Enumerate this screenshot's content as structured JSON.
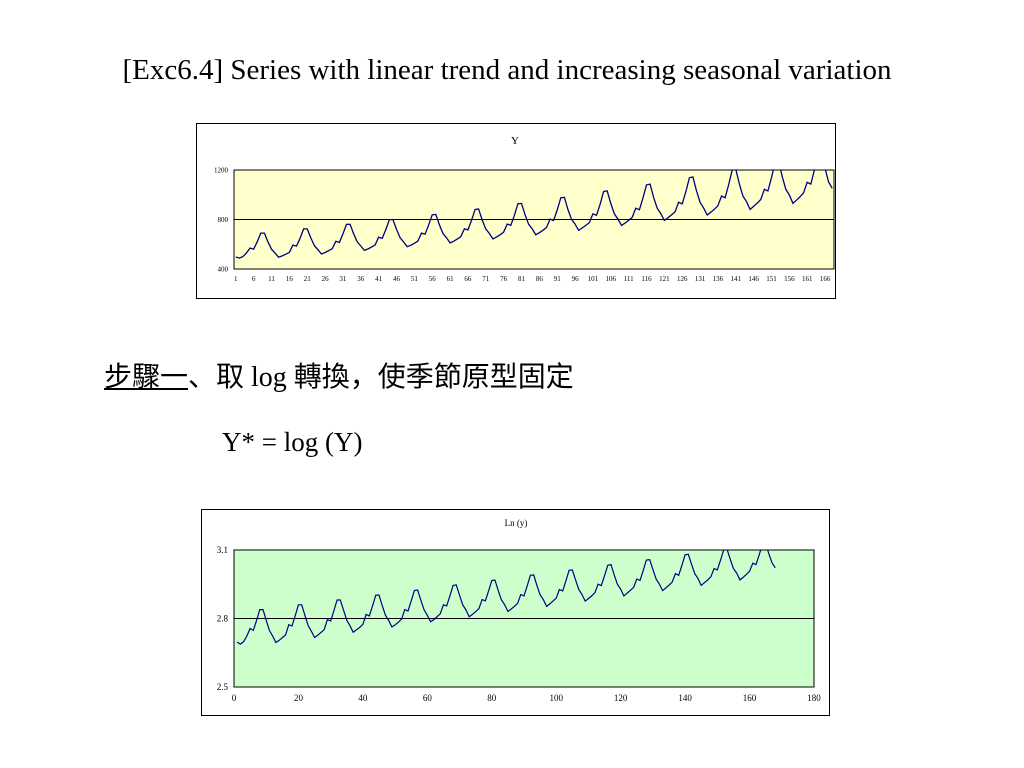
{
  "slide": {
    "title": "[Exc6.4] Series with linear trend and increasing seasonal variation",
    "step_label": "步驟一",
    "step_text": "、取 log 轉換，使季節原型固定",
    "formula": "Y* = log (Y)"
  },
  "colors": {
    "plot_bg_top": "#ffffcc",
    "plot_bg_bottom": "#ccffcc",
    "series_top": "#000080",
    "series_bottom": "#000080"
  },
  "chart_data": [
    {
      "type": "line",
      "title": "Y",
      "xlabel": "",
      "ylabel": "",
      "ylim": [
        400,
        1200
      ],
      "y_ticks": [
        400,
        800,
        1200
      ],
      "x_tick_labels": [
        "1",
        "6",
        "11",
        "16",
        "21",
        "26",
        "31",
        "36",
        "41",
        "46",
        "51",
        "56",
        "61",
        "66",
        "71",
        "76",
        "81",
        "86",
        "91",
        "96",
        "101",
        "106",
        "111",
        "116",
        "121",
        "126",
        "131",
        "136",
        "141",
        "146",
        "151",
        "156",
        "161",
        "166"
      ],
      "grid": "horizontal line at 800",
      "legend": "none",
      "x": [
        1,
        2,
        3,
        4,
        5,
        6,
        7,
        8,
        9,
        10,
        11,
        12,
        13,
        14,
        15,
        16,
        17,
        18,
        19,
        20,
        21,
        22,
        23,
        24,
        25,
        26,
        27,
        28,
        29,
        30,
        31,
        32,
        33,
        34,
        35,
        36,
        37,
        38,
        39,
        40,
        41,
        42,
        43,
        44,
        45,
        46,
        47,
        48,
        49,
        50,
        51,
        52,
        53,
        54,
        55,
        56,
        57,
        58,
        59,
        60,
        61,
        62,
        63,
        64,
        65,
        66,
        67,
        68,
        69,
        70,
        71,
        72,
        73,
        74,
        75,
        76,
        77,
        78,
        79,
        80,
        81,
        82,
        83,
        84,
        85,
        86,
        87,
        88,
        89,
        90,
        91,
        92,
        93,
        94,
        95,
        96,
        97,
        98,
        99,
        100,
        101,
        102,
        103,
        104,
        105,
        106,
        107,
        108,
        109,
        110,
        111,
        112,
        113,
        114,
        115,
        116,
        117,
        118,
        119,
        120,
        121,
        122,
        123,
        124,
        125,
        126,
        127,
        128,
        129,
        130,
        131,
        132,
        133,
        134,
        135,
        136,
        137,
        138,
        139,
        140,
        141,
        142,
        143,
        144,
        145,
        146,
        147,
        148,
        149,
        150,
        151,
        152,
        153,
        154,
        155,
        156,
        157,
        158,
        159,
        160,
        161,
        162,
        163,
        164,
        165,
        166,
        167,
        168
      ],
      "values": [
        497,
        488,
        500,
        530,
        570,
        560,
        620,
        690,
        690,
        620,
        560,
        528,
        495,
        506,
        520,
        534,
        593,
        585,
        649,
        724,
        724,
        651,
        589,
        556,
        521,
        533,
        548,
        563,
        624,
        615,
        683,
        760,
        761,
        685,
        620,
        586,
        550,
        562,
        577,
        594,
        657,
        647,
        718,
        798,
        800,
        720,
        653,
        618,
        580,
        592,
        608,
        626,
        690,
        681,
        754,
        838,
        841,
        757,
        688,
        652,
        611,
        624,
        642,
        661,
        725,
        716,
        793,
        881,
        885,
        796,
        723,
        687,
        643,
        658,
        676,
        697,
        763,
        753,
        834,
        927,
        930,
        838,
        762,
        724,
        677,
        693,
        713,
        735,
        803,
        792,
        877,
        975,
        979,
        882,
        802,
        763,
        713,
        731,
        752,
        775,
        845,
        834,
        923,
        1026,
        1031,
        929,
        845,
        804,
        752,
        771,
        793,
        818,
        891,
        879,
        972,
        1080,
        1086,
        979,
        891,
        848,
        793,
        814,
        837,
        863,
        939,
        926,
        1023,
        1137,
        1144,
        1032,
        939,
        894,
        836,
        859,
        883,
        911,
        990,
        976,
        1079,
        1199,
        1206,
        1088,
        990,
        944,
        882,
        906,
        932,
        962,
        1044,
        1030,
        1138,
        1264,
        1272,
        1148,
        1045,
        997,
        931,
        956,
        984,
        1016,
        1101,
        1086,
        1200,
        1333,
        1341,
        1212,
        1103,
        1052
      ]
    },
    {
      "type": "line",
      "title": "Ln (y)",
      "xlabel": "",
      "ylabel": "",
      "xlim": [
        0,
        180
      ],
      "ylim": [
        2.5,
        3.1
      ],
      "x_ticks": [
        0,
        20,
        40,
        60,
        80,
        100,
        120,
        140,
        160,
        180
      ],
      "y_ticks": [
        2.5,
        2.8,
        3.1
      ],
      "grid": "horizontal line at 2.8",
      "legend": "none",
      "x": [
        1,
        2,
        3,
        4,
        5,
        6,
        7,
        8,
        9,
        10,
        11,
        12,
        13,
        14,
        15,
        16,
        17,
        18,
        19,
        20,
        21,
        22,
        23,
        24,
        25,
        26,
        27,
        28,
        29,
        30,
        31,
        32,
        33,
        34,
        35,
        36,
        37,
        38,
        39,
        40,
        41,
        42,
        43,
        44,
        45,
        46,
        47,
        48,
        49,
        50,
        51,
        52,
        53,
        54,
        55,
        56,
        57,
        58,
        59,
        60,
        61,
        62,
        63,
        64,
        65,
        66,
        67,
        68,
        69,
        70,
        71,
        72,
        73,
        74,
        75,
        76,
        77,
        78,
        79,
        80,
        81,
        82,
        83,
        84,
        85,
        86,
        87,
        88,
        89,
        90,
        91,
        92,
        93,
        94,
        95,
        96,
        97,
        98,
        99,
        100,
        101,
        102,
        103,
        104,
        105,
        106,
        107,
        108,
        109,
        110,
        111,
        112,
        113,
        114,
        115,
        116,
        117,
        118,
        119,
        120,
        121,
        122,
        123,
        124,
        125,
        126,
        127,
        128,
        129,
        130,
        131,
        132,
        133,
        134,
        135,
        136,
        137,
        138,
        139,
        140,
        141,
        142,
        143,
        144,
        145,
        146,
        147,
        148,
        149,
        150,
        151,
        152,
        153,
        154,
        155,
        156,
        157,
        158,
        159,
        160,
        161,
        162,
        163,
        164,
        165,
        166,
        167,
        168
      ],
      "values": [
        2.696,
        2.688,
        2.699,
        2.724,
        2.756,
        2.748,
        2.792,
        2.839,
        2.839,
        2.792,
        2.748,
        2.723,
        2.695,
        2.704,
        2.716,
        2.728,
        2.773,
        2.767,
        2.812,
        2.86,
        2.86,
        2.814,
        2.77,
        2.745,
        2.717,
        2.727,
        2.739,
        2.751,
        2.795,
        2.789,
        2.834,
        2.881,
        2.881,
        2.836,
        2.792,
        2.768,
        2.74,
        2.75,
        2.761,
        2.774,
        2.818,
        2.811,
        2.856,
        2.902,
        2.903,
        2.857,
        2.815,
        2.791,
        2.763,
        2.772,
        2.784,
        2.797,
        2.839,
        2.833,
        2.877,
        2.923,
        2.925,
        2.879,
        2.838,
        2.814,
        2.786,
        2.795,
        2.808,
        2.82,
        2.86,
        2.855,
        2.899,
        2.945,
        2.947,
        2.901,
        2.859,
        2.837,
        2.808,
        2.818,
        2.83,
        2.843,
        2.883,
        2.877,
        2.921,
        2.967,
        2.968,
        2.923,
        2.882,
        2.86,
        2.831,
        2.841,
        2.853,
        2.866,
        2.905,
        2.899,
        2.943,
        2.989,
        2.991,
        2.945,
        2.904,
        2.883,
        2.853,
        2.864,
        2.876,
        2.889,
        2.927,
        2.921,
        2.965,
        3.011,
        3.013,
        2.968,
        2.927,
        2.905,
        2.876,
        2.887,
        2.899,
        2.913,
        2.95,
        2.944,
        2.988,
        3.033,
        3.036,
        2.991,
        2.95,
        2.928,
        2.899,
        2.911,
        2.923,
        2.936,
        2.973,
        2.967,
        3.01,
        3.056,
        3.058,
        3.014,
        2.973,
        2.951,
        2.922,
        2.934,
        2.946,
        2.96,
        2.996,
        2.989,
        3.033,
        3.079,
        3.081,
        3.037,
        2.996,
        2.975,
        2.945,
        2.957,
        2.969,
        2.983,
        3.019,
        3.013,
        3.056,
        3.102,
        3.104,
        3.06,
        3.019,
        2.999,
        2.969,
        2.98,
        2.993,
        3.007,
        3.042,
        3.036,
        3.079,
        3.125,
        3.127,
        3.083,
        3.043,
        3.022
      ]
    }
  ]
}
